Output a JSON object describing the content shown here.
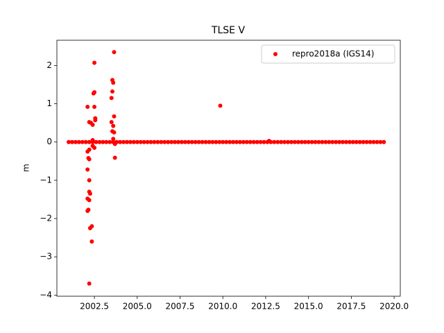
{
  "chart_data": {
    "type": "scatter",
    "title": "TLSE V",
    "ylabel": "m",
    "xlim": [
      2000.31,
      2020.36
    ],
    "ylim": [
      -4.03,
      2.66
    ],
    "xticks": [
      {
        "value": 2002.5,
        "label": "2002.5"
      },
      {
        "value": 2005,
        "label": "2005.0"
      },
      {
        "value": 2007.5,
        "label": "2007.5"
      },
      {
        "value": 2010,
        "label": "2010.0"
      },
      {
        "value": 2012.5,
        "label": "2012.5"
      },
      {
        "value": 2015,
        "label": "2015.0"
      },
      {
        "value": 2017.5,
        "label": "2017.5"
      },
      {
        "value": 2020,
        "label": "2020.0"
      }
    ],
    "yticks": [
      {
        "value": -4,
        "label": "−4"
      },
      {
        "value": -3,
        "label": "−3"
      },
      {
        "value": -2,
        "label": "−2"
      },
      {
        "value": -1,
        "label": "−1"
      },
      0,
      1,
      2
    ],
    "grid": false,
    "legend": "upper right",
    "series": [
      {
        "name": "repro2018a (IGS14)",
        "color": "#ff0000",
        "x": [
          2002.1,
          2002.5,
          2002.5,
          2002.45,
          2002.5,
          2002.55,
          2002.55,
          2002.2,
          2002.3,
          2002.4,
          2002.2,
          2002.1,
          2002.15,
          2002.2,
          2002.1,
          2002.2,
          2002.2,
          2002.25,
          2002.1,
          2002.2,
          2002.15,
          2002.1,
          2002.35,
          2002.25,
          2002.35,
          2002.2,
          2003.65,
          2003.55,
          2003.6,
          2003.55,
          2003.5,
          2003.65,
          2003.5,
          2003.6,
          2003.55,
          2003.65,
          2003.7,
          2009.85,
          2002.4,
          2002.4,
          2002.5,
          2003.6,
          2003.7,
          2012.7,
          2001.0,
          2001.2,
          2001.4,
          2001.6,
          2001.8,
          2002.0,
          2002.2,
          2002.4,
          2002.6,
          2002.8,
          2003.0,
          2003.2,
          2003.4,
          2003.6,
          2003.8,
          2004.0,
          2004.2,
          2004.4,
          2004.6,
          2004.8,
          2005.0,
          2005.2,
          2005.4,
          2005.6,
          2005.8,
          2006.0,
          2006.2,
          2006.4,
          2006.6,
          2006.8,
          2007.0,
          2007.2,
          2007.4,
          2007.6,
          2007.8,
          2008.0,
          2008.2,
          2008.4,
          2008.6,
          2008.8,
          2009.0,
          2009.2,
          2009.4,
          2009.6,
          2009.8,
          2010.0,
          2010.2,
          2010.4,
          2010.6,
          2010.8,
          2011.0,
          2011.2,
          2011.4,
          2011.6,
          2011.8,
          2012.0,
          2012.2,
          2012.4,
          2012.6,
          2012.8,
          2013.0,
          2013.2,
          2013.4,
          2013.6,
          2013.8,
          2014.0,
          2014.2,
          2014.4,
          2014.6,
          2014.8,
          2015.0,
          2015.2,
          2015.4,
          2015.6,
          2015.8,
          2016.0,
          2016.2,
          2016.4,
          2016.6,
          2016.8,
          2017.0,
          2017.2,
          2017.4,
          2017.6,
          2017.8,
          2018.0,
          2018.2,
          2018.4,
          2018.6,
          2018.8,
          2019.0,
          2019.2,
          2019.4
        ],
        "values": [
          0.92,
          2.07,
          1.3,
          1.27,
          0.92,
          0.62,
          0.57,
          0.52,
          0.5,
          0.45,
          -0.2,
          -0.25,
          -0.42,
          -0.45,
          -0.72,
          -1.0,
          -1.3,
          -1.35,
          -1.48,
          -1.52,
          -1.77,
          -1.8,
          -2.2,
          -2.25,
          -2.6,
          -3.7,
          2.35,
          1.62,
          1.55,
          1.32,
          1.15,
          0.67,
          0.52,
          0.42,
          0.28,
          0.25,
          -0.41,
          0.95,
          0.05,
          -0.1,
          -0.15,
          0.08,
          -0.05,
          0.03,
          0,
          0,
          0,
          0,
          0,
          0,
          0,
          0,
          0,
          0,
          0,
          0,
          0,
          0,
          0,
          0,
          0,
          0,
          0,
          0,
          0,
          0,
          0,
          0,
          0,
          0,
          0,
          0,
          0,
          0,
          0,
          0,
          0,
          0,
          0,
          0,
          0,
          0,
          0,
          0,
          0,
          0,
          0,
          0,
          0,
          0,
          0,
          0,
          0,
          0,
          0,
          0,
          0,
          0,
          0,
          0,
          0,
          0,
          0,
          0,
          0,
          0,
          0,
          0,
          0,
          0,
          0,
          0,
          0,
          0,
          0,
          0,
          0,
          0,
          0,
          0,
          0,
          0,
          0,
          0,
          0,
          0,
          0,
          0,
          0,
          0,
          0,
          0,
          0,
          0,
          0,
          0,
          0
        ]
      }
    ]
  }
}
